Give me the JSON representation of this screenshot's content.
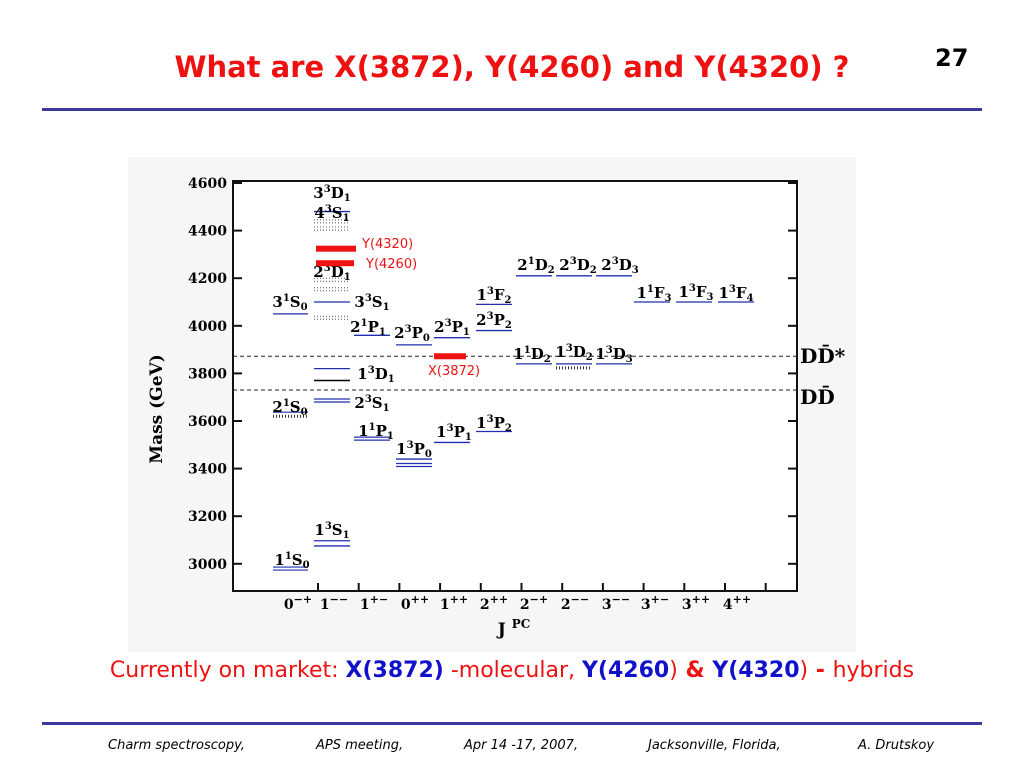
{
  "slide": {
    "title": "What are X(3872), Y(4260) and Y(4320) ?",
    "number": "27",
    "caption": {
      "prefix": "Currently on market: ",
      "x": "X(3872)",
      "mid": " -molecular, ",
      "y1": "Y(4260",
      "y1_close": ")",
      "amp": " & ",
      "y2": "Y(4320",
      "y2_close": ")",
      "dash": " - ",
      "suffix": "hybrids"
    },
    "footer": [
      "Charm spectroscopy,",
      "APS meeting,",
      "Apr 14 -17, 2007,",
      "Jacksonville, Florida,",
      "A. Drutskoy"
    ]
  },
  "chart_data": {
    "type": "diagram",
    "ylabel": "Mass (GeV)",
    "xlabel": "J",
    "xlabel_sup": "PC",
    "y_ticks": [
      "4600",
      "4400",
      "4200",
      "4000",
      "3800",
      "3600",
      "3400",
      "3200",
      "3000"
    ],
    "x_ticks": [
      {
        "b": "0",
        "s": "−+"
      },
      {
        "b": "1",
        "s": "−−"
      },
      {
        "b": "1",
        "s": "+−"
      },
      {
        "b": "0",
        "s": "++"
      },
      {
        "b": "1",
        "s": "++"
      },
      {
        "b": "2",
        "s": "++"
      },
      {
        "b": "2",
        "s": "−+"
      },
      {
        "b": "2",
        "s": "−−"
      },
      {
        "b": "3",
        "s": "−−"
      },
      {
        "b": "3",
        "s": "+−"
      },
      {
        "b": "3",
        "s": "++"
      },
      {
        "b": "4",
        "s": "++"
      }
    ],
    "state_labels": [
      {
        "n": "3",
        "sup": "3",
        "L": "D",
        "sub": "1"
      },
      {
        "n": "4",
        "sup": "3",
        "L": "S",
        "sub": "1"
      },
      {
        "n": "2",
        "sup": "3",
        "L": "D",
        "sub": "1"
      },
      {
        "n": "3",
        "sup": "1",
        "L": "S",
        "sub": "0"
      },
      {
        "n": "3",
        "sup": "3",
        "L": "S",
        "sub": "1"
      },
      {
        "n": "2",
        "sup": "1",
        "L": "P",
        "sub": "1"
      },
      {
        "n": "2",
        "sup": "3",
        "L": "P",
        "sub": "0"
      },
      {
        "n": "2",
        "sup": "3",
        "L": "P",
        "sub": "1"
      },
      {
        "n": "2",
        "sup": "3",
        "L": "P",
        "sub": "2"
      },
      {
        "n": "1",
        "sup": "3",
        "L": "D",
        "sub": "1"
      },
      {
        "n": "2",
        "sup": "1",
        "L": "S",
        "sub": "0"
      },
      {
        "n": "2",
        "sup": "3",
        "L": "S",
        "sub": "1"
      },
      {
        "n": "1",
        "sup": "1",
        "L": "P",
        "sub": "1"
      },
      {
        "n": "1",
        "sup": "3",
        "L": "P",
        "sub": "0"
      },
      {
        "n": "1",
        "sup": "3",
        "L": "P",
        "sub": "1"
      },
      {
        "n": "1",
        "sup": "3",
        "L": "P",
        "sub": "2"
      },
      {
        "n": "1",
        "sup": "3",
        "L": "S",
        "sub": "1"
      },
      {
        "n": "1",
        "sup": "1",
        "L": "S",
        "sub": "0"
      },
      {
        "n": "2",
        "sup": "1",
        "L": "D",
        "sub": "2"
      },
      {
        "n": "2",
        "sup": "3",
        "L": "D",
        "sub": "2"
      },
      {
        "n": "2",
        "sup": "3",
        "L": "D",
        "sub": "3"
      },
      {
        "n": "1",
        "sup": "3",
        "L": "F",
        "sub": "2"
      },
      {
        "n": "1",
        "sup": "1",
        "L": "F",
        "sub": "3"
      },
      {
        "n": "1",
        "sup": "3",
        "L": "F",
        "sub": "3"
      },
      {
        "n": "1",
        "sup": "3",
        "L": "F",
        "sub": "4"
      },
      {
        "n": "1",
        "sup": "1",
        "L": "D",
        "sub": "2"
      },
      {
        "n": "1",
        "sup": "3",
        "L": "D",
        "sub": "2"
      },
      {
        "n": "1",
        "sup": "3",
        "L": "D",
        "sub": "3"
      }
    ],
    "exotic_labels": [
      "Y(4320)",
      "Y(4260)",
      "X(3872)"
    ],
    "thresholds": [
      "DD̄*",
      "DD̄"
    ],
    "colors": {
      "exotic": "#ee1111",
      "level": "#1f2fb0",
      "axis": "#111111"
    }
  }
}
